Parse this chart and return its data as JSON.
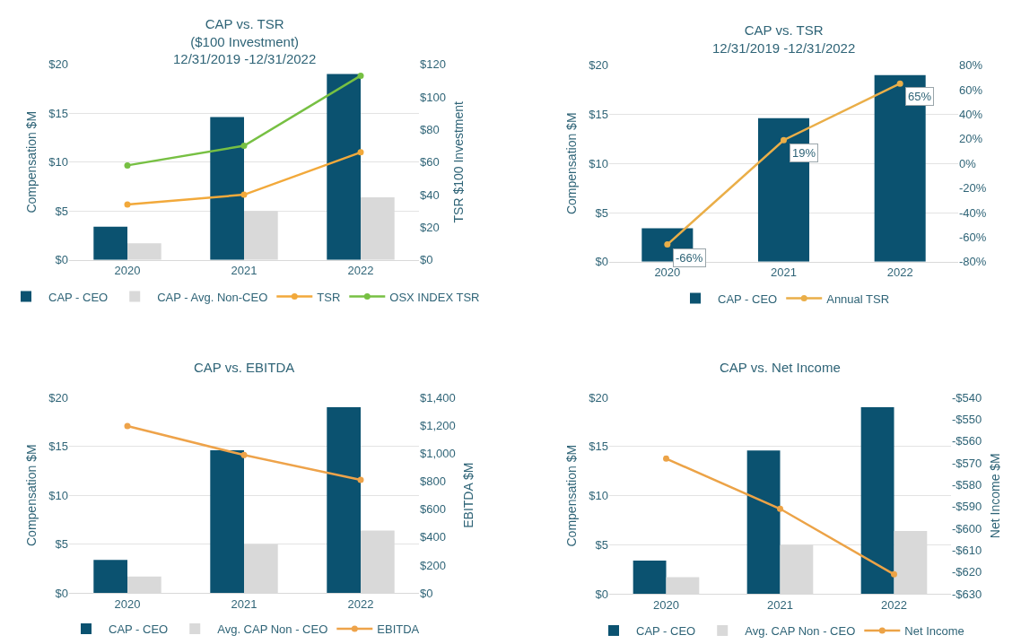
{
  "chart_data": [
    {
      "type": "bar",
      "title": "CAP vs. TSR\n($100 Investment)\n12/31/2019 -12/31/2022",
      "categories": [
        "2020",
        "2021",
        "2022"
      ],
      "ylabel": "Compensation $M",
      "y2label": "TSR $100 Investment",
      "ylim": [
        0,
        20
      ],
      "yticks": [
        {
          "value": 0,
          "label": "$0"
        },
        {
          "value": 5,
          "label": "$5"
        },
        {
          "value": 10,
          "label": "$10"
        },
        {
          "value": 15,
          "label": "$15"
        },
        {
          "value": 20,
          "label": "$20"
        }
      ],
      "y2lim": [
        0,
        120
      ],
      "y2ticks": [
        {
          "value": 0,
          "label": "$0"
        },
        {
          "value": 20,
          "label": "$20"
        },
        {
          "value": 40,
          "label": "$40"
        },
        {
          "value": 60,
          "label": "$60"
        },
        {
          "value": 80,
          "label": "$80"
        },
        {
          "value": 100,
          "label": "$100"
        },
        {
          "value": 120,
          "label": "$120"
        }
      ],
      "grid": "y",
      "legend": "bottom",
      "marker": "circle",
      "line_style": "solid",
      "series": [
        {
          "name": "CAP - CEO",
          "color": "#0b5270",
          "values": [
            3.4,
            14.6,
            19.0
          ]
        },
        {
          "name": "CAP - Avg. Non-CEO",
          "color": "#d9d9d9",
          "values": [
            1.7,
            5.0,
            6.4
          ]
        },
        {
          "name": "TSR",
          "type": "line",
          "axis": "y2",
          "color": "#f2a93b",
          "values": [
            34,
            40,
            66
          ]
        },
        {
          "name": "OSX INDEX TSR",
          "type": "line",
          "axis": "y2",
          "color": "#77c043",
          "values": [
            58,
            70,
            113
          ]
        }
      ]
    },
    {
      "type": "bar",
      "title": "CAP vs. TSR\n12/31/2019 -12/31/2022",
      "categories": [
        "2020",
        "2021",
        "2022"
      ],
      "ylabel": "Compensation $M",
      "ylim": [
        0,
        20
      ],
      "yticks": [
        {
          "value": 0,
          "label": "$0"
        },
        {
          "value": 5,
          "label": "$5"
        },
        {
          "value": 10,
          "label": "$10"
        },
        {
          "value": 15,
          "label": "$15"
        },
        {
          "value": 20,
          "label": "$20"
        }
      ],
      "y2lim": [
        -80,
        80
      ],
      "y2ticks": [
        {
          "value": -80,
          "label": "-80%"
        },
        {
          "value": -60,
          "label": "-60%"
        },
        {
          "value": -40,
          "label": "-40%"
        },
        {
          "value": -20,
          "label": "-20%"
        },
        {
          "value": 0,
          "label": "0%"
        },
        {
          "value": 20,
          "label": "20%"
        },
        {
          "value": 40,
          "label": "40%"
        },
        {
          "value": 60,
          "label": "60%"
        },
        {
          "value": 80,
          "label": "80%"
        }
      ],
      "grid": "y",
      "legend": "bottom",
      "marker": "circle",
      "line_style": "solid",
      "series": [
        {
          "name": "CAP - CEO",
          "color": "#0b5270",
          "values": [
            3.4,
            14.6,
            19.0
          ]
        },
        {
          "name": "Annual TSR",
          "type": "line",
          "axis": "y2",
          "color": "#eaae48",
          "values": [
            -66,
            19,
            65
          ],
          "value_labels": [
            "-66%",
            "19%",
            "65%"
          ]
        }
      ]
    },
    {
      "type": "bar",
      "title": "CAP vs. EBITDA",
      "categories": [
        "2020",
        "2021",
        "2022"
      ],
      "ylabel": "Compensation $M",
      "y2label": "EBITDA $M",
      "ylim": [
        0,
        20
      ],
      "yticks": [
        {
          "value": 0,
          "label": "$0"
        },
        {
          "value": 5,
          "label": "$5"
        },
        {
          "value": 10,
          "label": "$10"
        },
        {
          "value": 15,
          "label": "$15"
        },
        {
          "value": 20,
          "label": "$20"
        }
      ],
      "y2lim": [
        0,
        1400
      ],
      "y2ticks": [
        {
          "value": 0,
          "label": "$0"
        },
        {
          "value": 200,
          "label": "$200"
        },
        {
          "value": 400,
          "label": "$400"
        },
        {
          "value": 600,
          "label": "$600"
        },
        {
          "value": 800,
          "label": "$800"
        },
        {
          "value": 1000,
          "label": "$1,000"
        },
        {
          "value": 1200,
          "label": "$1,200"
        },
        {
          "value": 1400,
          "label": "$1,400"
        }
      ],
      "grid": "y",
      "legend": "bottom",
      "marker": "circle",
      "line_style": "solid",
      "series": [
        {
          "name": "CAP - CEO",
          "color": "#0b5270",
          "values": [
            3.4,
            14.6,
            19.0
          ]
        },
        {
          "name": "Avg. CAP Non - CEO",
          "color": "#d9d9d9",
          "values": [
            1.7,
            5.0,
            6.4
          ]
        },
        {
          "name": "EBITDA",
          "type": "line",
          "axis": "y2",
          "color": "#eea34a",
          "values": [
            1195,
            988,
            810
          ]
        }
      ]
    },
    {
      "type": "bar",
      "title": "CAP vs. Net Income",
      "categories": [
        "2020",
        "2021",
        "2022"
      ],
      "ylabel": "Compensation $M",
      "y2label": "Net Income $M",
      "ylim": [
        0,
        20
      ],
      "yticks": [
        {
          "value": 0,
          "label": "$0"
        },
        {
          "value": 5,
          "label": "$5"
        },
        {
          "value": 10,
          "label": "$10"
        },
        {
          "value": 15,
          "label": "$15"
        },
        {
          "value": 20,
          "label": "$20"
        }
      ],
      "y2lim": [
        -630,
        -540
      ],
      "y2ticks": [
        {
          "value": -630,
          "label": "-$630"
        },
        {
          "value": -620,
          "label": "-$620"
        },
        {
          "value": -610,
          "label": "-$610"
        },
        {
          "value": -600,
          "label": "-$600"
        },
        {
          "value": -590,
          "label": "-$590"
        },
        {
          "value": -580,
          "label": "-$580"
        },
        {
          "value": -570,
          "label": "-$570"
        },
        {
          "value": -560,
          "label": "-$560"
        },
        {
          "value": -550,
          "label": "-$550"
        },
        {
          "value": -540,
          "label": "-$540"
        }
      ],
      "grid": "y",
      "legend": "bottom",
      "marker": "circle",
      "line_style": "solid",
      "series": [
        {
          "name": "CAP - CEO",
          "color": "#0b5270",
          "values": [
            3.4,
            14.6,
            19.0
          ]
        },
        {
          "name": "Avg. CAP Non - CEO",
          "color": "#d9d9d9",
          "values": [
            1.7,
            5.0,
            6.4
          ]
        },
        {
          "name": "Net Income",
          "type": "line",
          "axis": "y2",
          "color": "#eca347",
          "values": [
            -568,
            -591,
            -621
          ]
        }
      ]
    }
  ]
}
